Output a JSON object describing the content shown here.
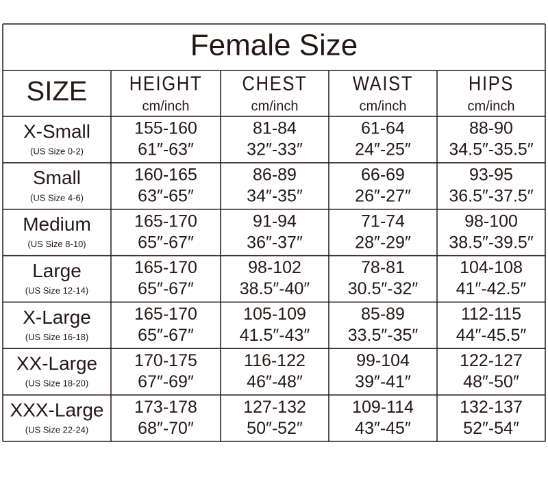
{
  "title": "Female Size",
  "size_header": "SIZE",
  "headers": [
    {
      "label": "HEIGHT",
      "unit": "cm/inch"
    },
    {
      "label": "CHEST",
      "unit": "cm/inch"
    },
    {
      "label": "WAIST",
      "unit": "cm/inch"
    },
    {
      "label": "HIPS",
      "unit": "cm/inch"
    }
  ],
  "rows": [
    {
      "size": "X-Small",
      "us": "(US Size 0-2)",
      "cells": [
        [
          "155-160",
          "61″-63″"
        ],
        [
          "81-84",
          "32″-33″"
        ],
        [
          "61-64",
          "24″-25″"
        ],
        [
          "88-90",
          "34.5″-35.5″"
        ]
      ]
    },
    {
      "size": "Small",
      "us": "(US Size 4-6)",
      "cells": [
        [
          "160-165",
          "63″-65″"
        ],
        [
          "86-89",
          "34″-35″"
        ],
        [
          "66-69",
          "26″-27″"
        ],
        [
          "93-95",
          "36.5″-37.5″"
        ]
      ]
    },
    {
      "size": "Medium",
      "us": "(US Size 8-10)",
      "cells": [
        [
          "165-170",
          "65″-67″"
        ],
        [
          "91-94",
          "36″-37″"
        ],
        [
          "71-74",
          "28″-29″"
        ],
        [
          "98-100",
          "38.5″-39.5″"
        ]
      ]
    },
    {
      "size": "Large",
      "us": "(US Size 12-14)",
      "cells": [
        [
          "165-170",
          "65″-67″"
        ],
        [
          "98-102",
          "38.5″-40″"
        ],
        [
          "78-81",
          "30.5″-32″"
        ],
        [
          "104-108",
          "41″-42.5″"
        ]
      ]
    },
    {
      "size": "X-Large",
      "us": "(US Size 16-18)",
      "cells": [
        [
          "165-170",
          "65″-67″"
        ],
        [
          "105-109",
          "41.5″-43″"
        ],
        [
          "85-89",
          "33.5″-35″"
        ],
        [
          "112-115",
          "44″-45.5″"
        ]
      ]
    },
    {
      "size": "XX-Large",
      "us": "(US Size 18-20)",
      "cells": [
        [
          "170-175",
          "67″-69″"
        ],
        [
          "116-122",
          "46″-48″"
        ],
        [
          "99-104",
          "39″-41″"
        ],
        [
          "122-127",
          "48″-50″"
        ]
      ]
    },
    {
      "size": "XXX-Large",
      "us": "(US Size 22-24)",
      "cells": [
        [
          "173-178",
          "68″-70″"
        ],
        [
          "127-132",
          "50″-52″"
        ],
        [
          "109-114",
          "43″-45″"
        ],
        [
          "132-137",
          "52″-54″"
        ]
      ]
    }
  ]
}
